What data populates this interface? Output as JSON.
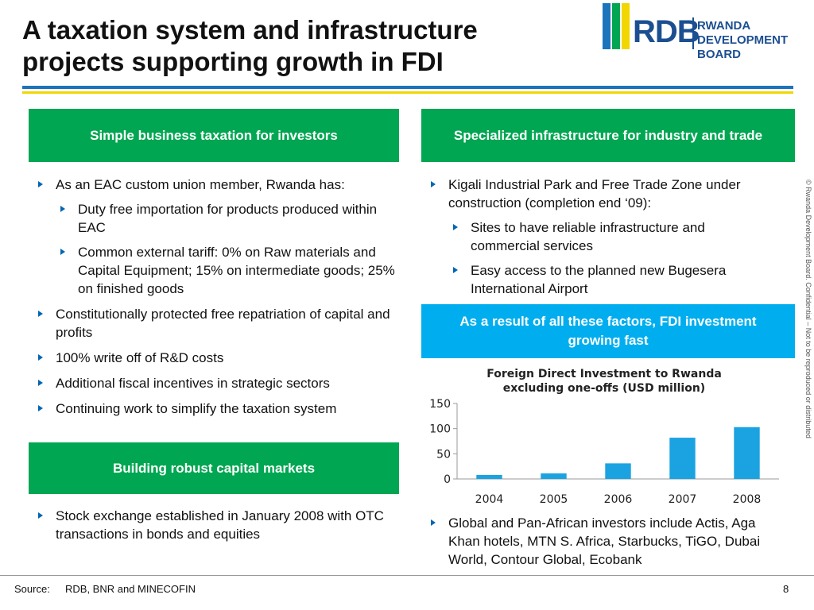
{
  "header": {
    "title_lines": [
      "A taxation system and infrastructure",
      "projects supporting growth in FDI"
    ],
    "logo_abbr": "RDB",
    "logo_line1": "RWANDA",
    "logo_line2": "DEVELOPMENT BOARD"
  },
  "taxation": {
    "heading": "Simple business taxation for investors",
    "bullets": [
      {
        "text": "As an EAC custom union member, Rwanda has:",
        "sub": [
          "Duty free importation for products produced within EAC",
          "Common external tariff: 0% on Raw materials and Capital Equipment; 15% on intermediate goods; 25% on finished goods"
        ]
      },
      {
        "text": "Constitutionally protected free repatriation of capital and profits"
      },
      {
        "text": "100% write off of R&D costs"
      },
      {
        "text": "Additional fiscal incentives in strategic sectors"
      },
      {
        "text": "Continuing work to simplify the taxation system"
      }
    ]
  },
  "capital_markets": {
    "heading": "Building robust capital markets",
    "bullets": [
      {
        "text": "Stock exchange established in January 2008 with OTC transactions in bonds and equities"
      }
    ]
  },
  "infrastructure": {
    "heading": "Specialized infrastructure for industry and trade",
    "bullets": [
      {
        "text": "Kigali Industrial Park and Free Trade Zone under construction (completion end ‘09):",
        "sub": [
          "Sites to have reliable infrastructure and commercial services",
          "Easy access to the planned new Bugesera International Airport"
        ]
      }
    ]
  },
  "fdi": {
    "heading": "As a result of all these factors, FDI investment growing fast",
    "bullets": [
      {
        "text": "Global and Pan-African investors include Actis, Aga Khan hotels, MTN S. Africa, Starbucks, TiGO, Dubai World, Contour Global, Ecobank"
      }
    ]
  },
  "chart_data": {
    "type": "bar",
    "title": "Foreign Direct Investment to Rwanda excluding one-offs (USD million)",
    "categories": [
      "2004",
      "2005",
      "2006",
      "2007",
      "2008"
    ],
    "values": [
      8,
      11,
      31,
      82,
      103
    ],
    "color": "#1aa3e0",
    "ylim": [
      0,
      150
    ],
    "yticks": [
      0,
      50,
      100,
      150
    ]
  },
  "footer": {
    "source_label": "Source:",
    "source": "RDB, BNR and MINECOFIN",
    "page": "8",
    "confidential": "© Rwanda Development Board. Confidential – Not to be reproduced or distributed"
  }
}
